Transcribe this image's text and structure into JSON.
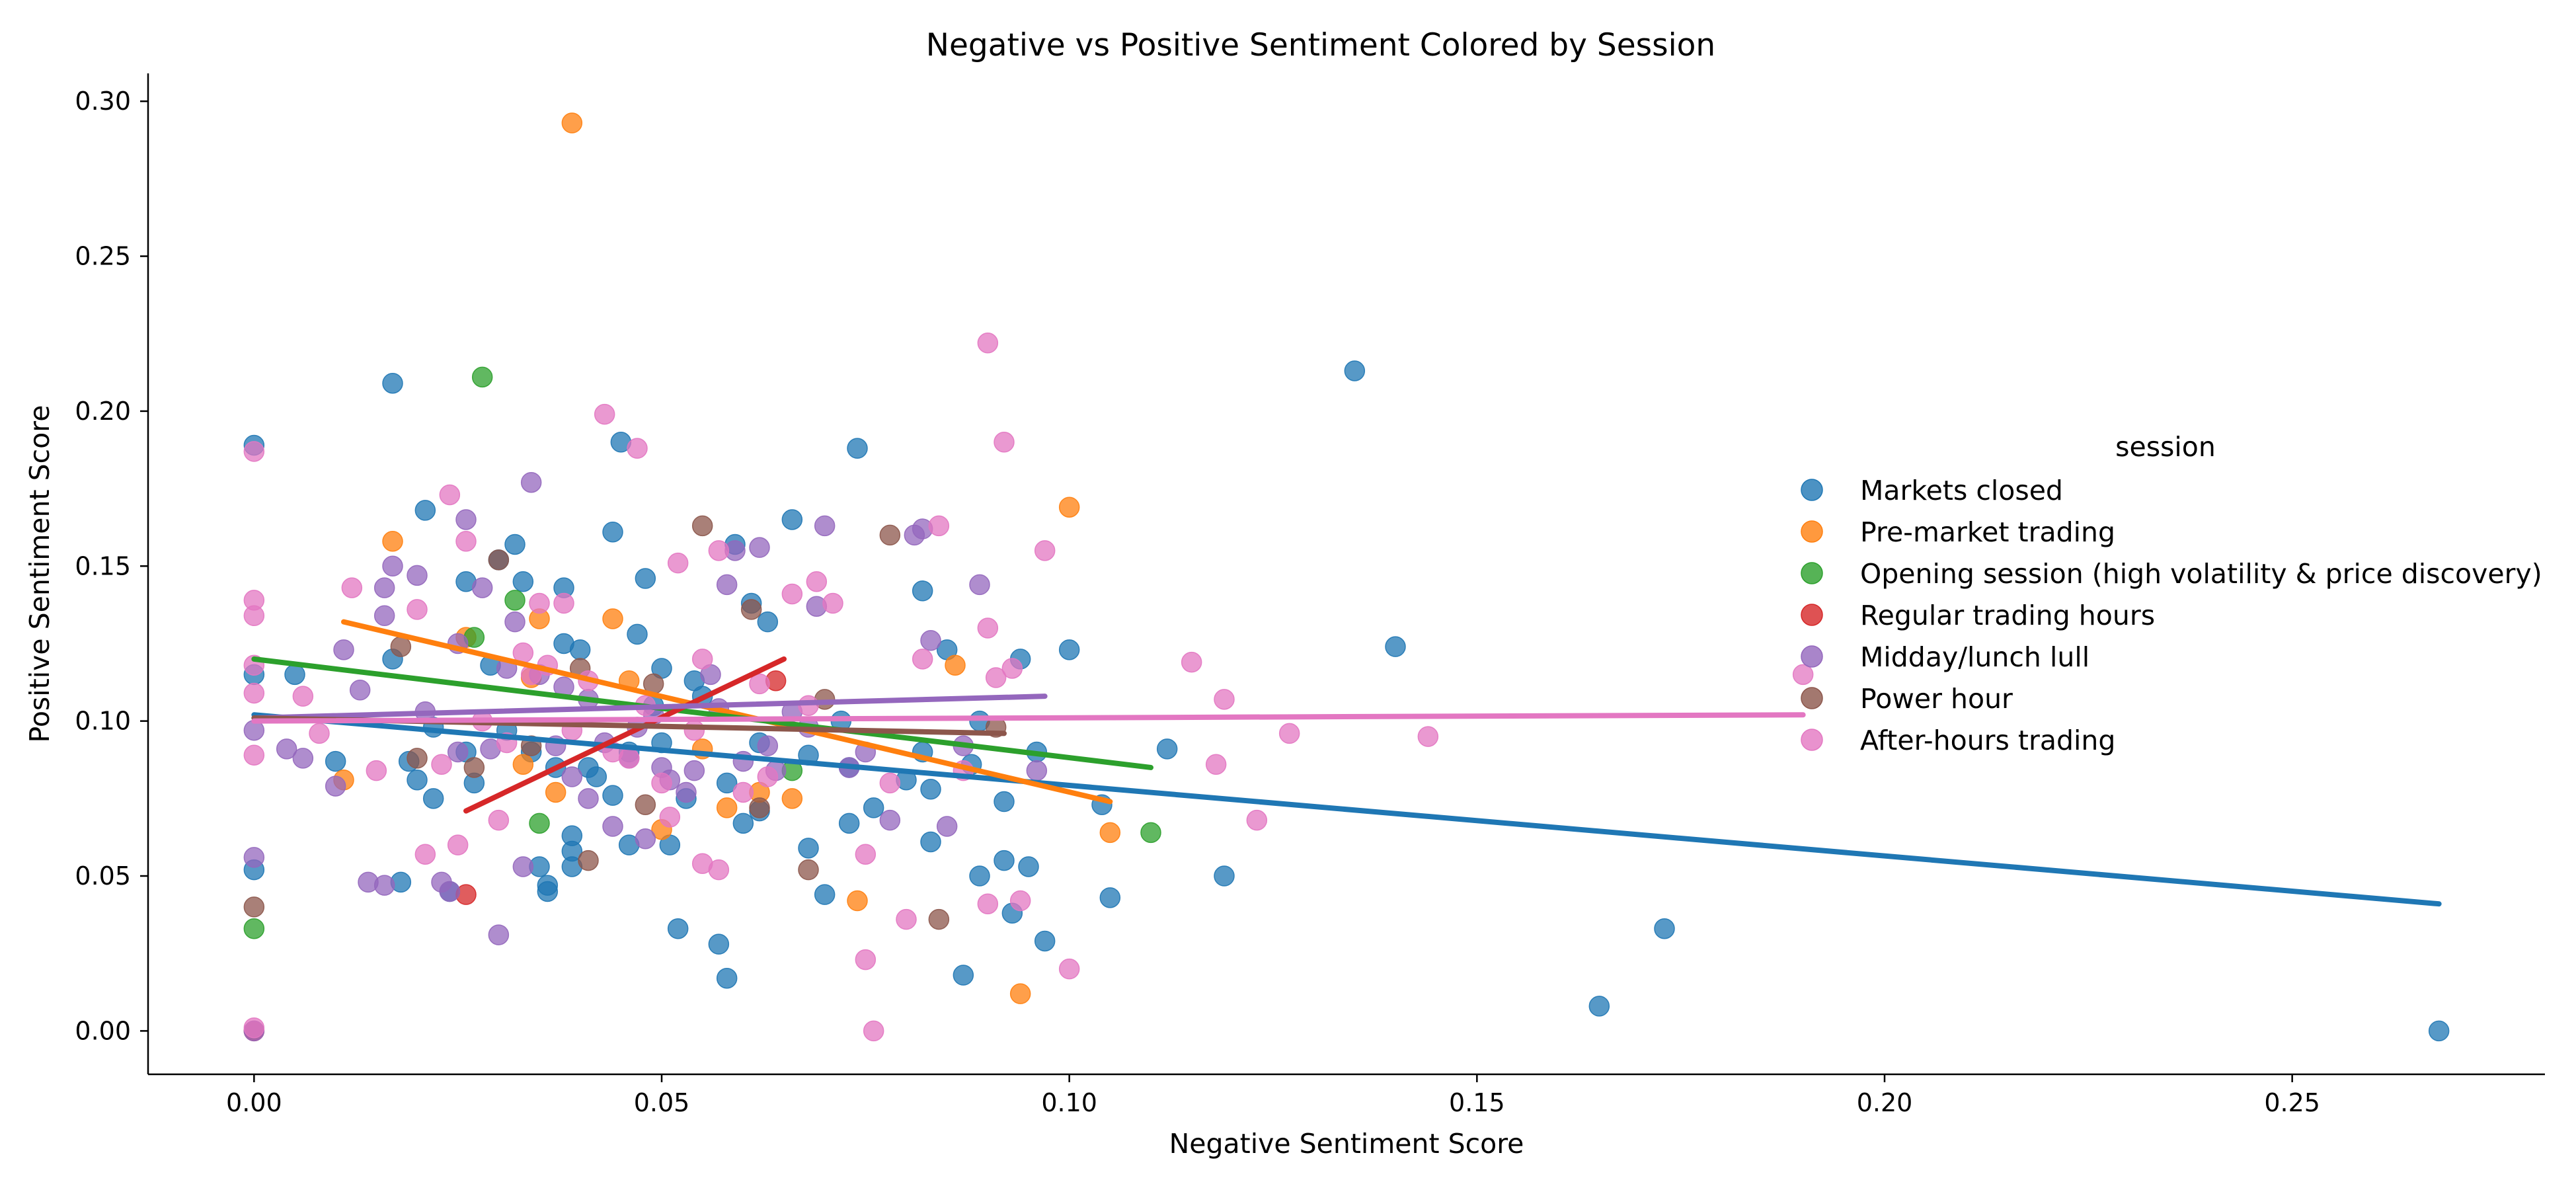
{
  "chart_data": {
    "type": "scatter",
    "title": "Negative vs Positive Sentiment Colored by Session",
    "xlabel": "Negative Sentiment Score",
    "ylabel": "Positive Sentiment Score",
    "xlim": [
      -0.013,
      0.281
    ],
    "ylim": [
      -0.014,
      0.309
    ],
    "xticks": [
      0.0,
      0.05,
      0.1,
      0.15,
      0.2,
      0.25
    ],
    "xtick_labels": [
      "0.00",
      "0.05",
      "0.10",
      "0.15",
      "0.20",
      "0.25"
    ],
    "yticks": [
      0.0,
      0.05,
      0.1,
      0.15,
      0.2,
      0.25,
      0.3
    ],
    "ytick_labels": [
      "0.00",
      "0.05",
      "0.10",
      "0.15",
      "0.20",
      "0.25",
      "0.30"
    ],
    "grid": false,
    "legend_title": "session",
    "legend_position": "right",
    "series": [
      {
        "name": "Markets closed",
        "color": "#1f77b4",
        "points": [
          [
            0.0,
            0.189
          ],
          [
            0.0,
            0.052
          ],
          [
            0.0,
            0.115
          ],
          [
            0.005,
            0.115
          ],
          [
            0.01,
            0.087
          ],
          [
            0.017,
            0.209
          ],
          [
            0.017,
            0.12
          ],
          [
            0.018,
            0.048
          ],
          [
            0.019,
            0.087
          ],
          [
            0.02,
            0.081
          ],
          [
            0.021,
            0.168
          ],
          [
            0.022,
            0.098
          ],
          [
            0.022,
            0.075
          ],
          [
            0.024,
            0.045
          ],
          [
            0.026,
            0.145
          ],
          [
            0.026,
            0.09
          ],
          [
            0.027,
            0.08
          ],
          [
            0.029,
            0.118
          ],
          [
            0.03,
            0.152
          ],
          [
            0.031,
            0.097
          ],
          [
            0.032,
            0.157
          ],
          [
            0.033,
            0.145
          ],
          [
            0.034,
            0.09
          ],
          [
            0.035,
            0.053
          ],
          [
            0.036,
            0.047
          ],
          [
            0.036,
            0.045
          ],
          [
            0.037,
            0.085
          ],
          [
            0.038,
            0.143
          ],
          [
            0.038,
            0.125
          ],
          [
            0.039,
            0.063
          ],
          [
            0.039,
            0.058
          ],
          [
            0.039,
            0.053
          ],
          [
            0.04,
            0.123
          ],
          [
            0.041,
            0.085
          ],
          [
            0.042,
            0.082
          ],
          [
            0.044,
            0.161
          ],
          [
            0.044,
            0.076
          ],
          [
            0.045,
            0.19
          ],
          [
            0.046,
            0.06
          ],
          [
            0.046,
            0.09
          ],
          [
            0.047,
            0.128
          ],
          [
            0.048,
            0.146
          ],
          [
            0.049,
            0.105
          ],
          [
            0.05,
            0.117
          ],
          [
            0.05,
            0.093
          ],
          [
            0.051,
            0.06
          ],
          [
            0.052,
            0.033
          ],
          [
            0.053,
            0.075
          ],
          [
            0.054,
            0.113
          ],
          [
            0.055,
            0.108
          ],
          [
            0.057,
            0.028
          ],
          [
            0.058,
            0.017
          ],
          [
            0.058,
            0.08
          ],
          [
            0.059,
            0.157
          ],
          [
            0.06,
            0.067
          ],
          [
            0.061,
            0.138
          ],
          [
            0.062,
            0.093
          ],
          [
            0.062,
            0.071
          ],
          [
            0.063,
            0.132
          ],
          [
            0.066,
            0.165
          ],
          [
            0.068,
            0.089
          ],
          [
            0.068,
            0.059
          ],
          [
            0.07,
            0.044
          ],
          [
            0.072,
            0.1
          ],
          [
            0.073,
            0.085
          ],
          [
            0.073,
            0.067
          ],
          [
            0.074,
            0.188
          ],
          [
            0.076,
            0.072
          ],
          [
            0.08,
            0.081
          ],
          [
            0.082,
            0.142
          ],
          [
            0.082,
            0.09
          ],
          [
            0.083,
            0.061
          ],
          [
            0.083,
            0.078
          ],
          [
            0.085,
            0.123
          ],
          [
            0.087,
            0.018
          ],
          [
            0.088,
            0.086
          ],
          [
            0.089,
            0.05
          ],
          [
            0.089,
            0.1
          ],
          [
            0.092,
            0.074
          ],
          [
            0.092,
            0.055
          ],
          [
            0.093,
            0.038
          ],
          [
            0.094,
            0.12
          ],
          [
            0.095,
            0.053
          ],
          [
            0.096,
            0.09
          ],
          [
            0.097,
            0.029
          ],
          [
            0.1,
            0.123
          ],
          [
            0.104,
            0.073
          ],
          [
            0.105,
            0.043
          ],
          [
            0.112,
            0.091
          ],
          [
            0.119,
            0.05
          ],
          [
            0.135,
            0.213
          ],
          [
            0.14,
            0.124
          ],
          [
            0.165,
            0.008
          ],
          [
            0.173,
            0.033
          ],
          [
            0.268,
            0.0
          ]
        ],
        "trend": [
          [
            0.0,
            0.102
          ],
          [
            0.268,
            0.041
          ]
        ]
      },
      {
        "name": "Pre-market trading",
        "color": "#ff7f0e",
        "points": [
          [
            0.011,
            0.081
          ],
          [
            0.017,
            0.158
          ],
          [
            0.026,
            0.127
          ],
          [
            0.033,
            0.086
          ],
          [
            0.034,
            0.114
          ],
          [
            0.035,
            0.133
          ],
          [
            0.037,
            0.077
          ],
          [
            0.039,
            0.293
          ],
          [
            0.044,
            0.133
          ],
          [
            0.046,
            0.113
          ],
          [
            0.05,
            0.065
          ],
          [
            0.055,
            0.091
          ],
          [
            0.058,
            0.072
          ],
          [
            0.062,
            0.077
          ],
          [
            0.066,
            0.075
          ],
          [
            0.074,
            0.042
          ],
          [
            0.086,
            0.118
          ],
          [
            0.094,
            0.012
          ],
          [
            0.1,
            0.169
          ],
          [
            0.105,
            0.064
          ]
        ],
        "trend": [
          [
            0.011,
            0.132
          ],
          [
            0.105,
            0.074
          ]
        ]
      },
      {
        "name": "Opening session (high volatility & price discovery)",
        "color": "#2ca02c",
        "points": [
          [
            0.0,
            0.033
          ],
          [
            0.027,
            0.127
          ],
          [
            0.028,
            0.211
          ],
          [
            0.032,
            0.139
          ],
          [
            0.035,
            0.067
          ],
          [
            0.066,
            0.084
          ],
          [
            0.11,
            0.064
          ]
        ],
        "trend": [
          [
            0.0,
            0.12
          ],
          [
            0.11,
            0.085
          ]
        ]
      },
      {
        "name": "Regular trading hours",
        "color": "#d62728",
        "points": [
          [
            0.0,
            0.0
          ],
          [
            0.026,
            0.044
          ],
          [
            0.064,
            0.113
          ]
        ],
        "trend": [
          [
            0.026,
            0.071
          ],
          [
            0.065,
            0.12
          ]
        ]
      },
      {
        "name": "Midday/lunch lull",
        "color": "#9467bd",
        "points": [
          [
            0.0,
            0.0
          ],
          [
            0.0,
            0.056
          ],
          [
            0.0,
            0.097
          ],
          [
            0.004,
            0.091
          ],
          [
            0.006,
            0.088
          ],
          [
            0.01,
            0.079
          ],
          [
            0.011,
            0.123
          ],
          [
            0.013,
            0.11
          ],
          [
            0.014,
            0.048
          ],
          [
            0.016,
            0.047
          ],
          [
            0.016,
            0.134
          ],
          [
            0.016,
            0.143
          ],
          [
            0.017,
            0.15
          ],
          [
            0.02,
            0.147
          ],
          [
            0.021,
            0.103
          ],
          [
            0.023,
            0.048
          ],
          [
            0.024,
            0.045
          ],
          [
            0.025,
            0.09
          ],
          [
            0.025,
            0.125
          ],
          [
            0.026,
            0.165
          ],
          [
            0.028,
            0.143
          ],
          [
            0.029,
            0.091
          ],
          [
            0.03,
            0.031
          ],
          [
            0.031,
            0.117
          ],
          [
            0.032,
            0.132
          ],
          [
            0.033,
            0.053
          ],
          [
            0.034,
            0.177
          ],
          [
            0.035,
            0.115
          ],
          [
            0.037,
            0.092
          ],
          [
            0.038,
            0.111
          ],
          [
            0.039,
            0.082
          ],
          [
            0.041,
            0.075
          ],
          [
            0.041,
            0.107
          ],
          [
            0.043,
            0.093
          ],
          [
            0.044,
            0.066
          ],
          [
            0.046,
            0.088
          ],
          [
            0.047,
            0.098
          ],
          [
            0.048,
            0.062
          ],
          [
            0.049,
            0.102
          ],
          [
            0.05,
            0.085
          ],
          [
            0.051,
            0.081
          ],
          [
            0.053,
            0.077
          ],
          [
            0.054,
            0.084
          ],
          [
            0.056,
            0.115
          ],
          [
            0.057,
            0.104
          ],
          [
            0.058,
            0.144
          ],
          [
            0.059,
            0.155
          ],
          [
            0.06,
            0.087
          ],
          [
            0.062,
            0.156
          ],
          [
            0.063,
            0.092
          ],
          [
            0.064,
            0.084
          ],
          [
            0.066,
            0.103
          ],
          [
            0.068,
            0.098
          ],
          [
            0.069,
            0.137
          ],
          [
            0.07,
            0.163
          ],
          [
            0.073,
            0.085
          ],
          [
            0.075,
            0.09
          ],
          [
            0.078,
            0.068
          ],
          [
            0.081,
            0.16
          ],
          [
            0.082,
            0.162
          ],
          [
            0.083,
            0.126
          ],
          [
            0.085,
            0.066
          ],
          [
            0.087,
            0.092
          ],
          [
            0.089,
            0.144
          ],
          [
            0.096,
            0.084
          ]
        ],
        "trend": [
          [
            0.0,
            0.101
          ],
          [
            0.097,
            0.108
          ]
        ]
      },
      {
        "name": "Power hour",
        "color": "#8c564b",
        "points": [
          [
            0.0,
            0.04
          ],
          [
            0.018,
            0.124
          ],
          [
            0.02,
            0.088
          ],
          [
            0.027,
            0.085
          ],
          [
            0.03,
            0.152
          ],
          [
            0.034,
            0.092
          ],
          [
            0.04,
            0.117
          ],
          [
            0.041,
            0.055
          ],
          [
            0.048,
            0.073
          ],
          [
            0.049,
            0.112
          ],
          [
            0.055,
            0.163
          ],
          [
            0.061,
            0.136
          ],
          [
            0.062,
            0.072
          ],
          [
            0.068,
            0.052
          ],
          [
            0.07,
            0.107
          ],
          [
            0.078,
            0.16
          ],
          [
            0.084,
            0.036
          ],
          [
            0.091,
            0.098
          ]
        ],
        "trend": [
          [
            0.0,
            0.101
          ],
          [
            0.092,
            0.096
          ]
        ]
      },
      {
        "name": "After-hours trading",
        "color": "#e377c2",
        "points": [
          [
            0.0,
            0.001
          ],
          [
            0.0,
            0.089
          ],
          [
            0.0,
            0.109
          ],
          [
            0.0,
            0.118
          ],
          [
            0.0,
            0.134
          ],
          [
            0.0,
            0.139
          ],
          [
            0.0,
            0.187
          ],
          [
            0.006,
            0.108
          ],
          [
            0.008,
            0.096
          ],
          [
            0.012,
            0.143
          ],
          [
            0.015,
            0.084
          ],
          [
            0.02,
            0.136
          ],
          [
            0.021,
            0.057
          ],
          [
            0.023,
            0.086
          ],
          [
            0.024,
            0.173
          ],
          [
            0.025,
            0.06
          ],
          [
            0.026,
            0.158
          ],
          [
            0.028,
            0.1
          ],
          [
            0.03,
            0.068
          ],
          [
            0.031,
            0.093
          ],
          [
            0.033,
            0.122
          ],
          [
            0.034,
            0.115
          ],
          [
            0.035,
            0.138
          ],
          [
            0.036,
            0.118
          ],
          [
            0.038,
            0.138
          ],
          [
            0.039,
            0.097
          ],
          [
            0.041,
            0.113
          ],
          [
            0.043,
            0.199
          ],
          [
            0.044,
            0.09
          ],
          [
            0.046,
            0.088
          ],
          [
            0.047,
            0.188
          ],
          [
            0.048,
            0.105
          ],
          [
            0.05,
            0.08
          ],
          [
            0.051,
            0.069
          ],
          [
            0.052,
            0.151
          ],
          [
            0.054,
            0.097
          ],
          [
            0.055,
            0.054
          ],
          [
            0.055,
            0.12
          ],
          [
            0.057,
            0.052
          ],
          [
            0.057,
            0.155
          ],
          [
            0.06,
            0.077
          ],
          [
            0.062,
            0.112
          ],
          [
            0.063,
            0.082
          ],
          [
            0.066,
            0.141
          ],
          [
            0.068,
            0.105
          ],
          [
            0.069,
            0.145
          ],
          [
            0.071,
            0.138
          ],
          [
            0.075,
            0.023
          ],
          [
            0.075,
            0.057
          ],
          [
            0.076,
            0.0
          ],
          [
            0.078,
            0.08
          ],
          [
            0.08,
            0.036
          ],
          [
            0.082,
            0.12
          ],
          [
            0.084,
            0.163
          ],
          [
            0.087,
            0.084
          ],
          [
            0.09,
            0.041
          ],
          [
            0.09,
            0.13
          ],
          [
            0.09,
            0.222
          ],
          [
            0.091,
            0.114
          ],
          [
            0.092,
            0.19
          ],
          [
            0.093,
            0.117
          ],
          [
            0.094,
            0.042
          ],
          [
            0.097,
            0.155
          ],
          [
            0.1,
            0.02
          ],
          [
            0.115,
            0.119
          ],
          [
            0.118,
            0.086
          ],
          [
            0.119,
            0.107
          ],
          [
            0.123,
            0.068
          ],
          [
            0.127,
            0.096
          ],
          [
            0.144,
            0.095
          ],
          [
            0.19,
            0.115
          ]
        ],
        "trend": [
          [
            0.0,
            0.1
          ],
          [
            0.19,
            0.102
          ]
        ]
      }
    ]
  }
}
